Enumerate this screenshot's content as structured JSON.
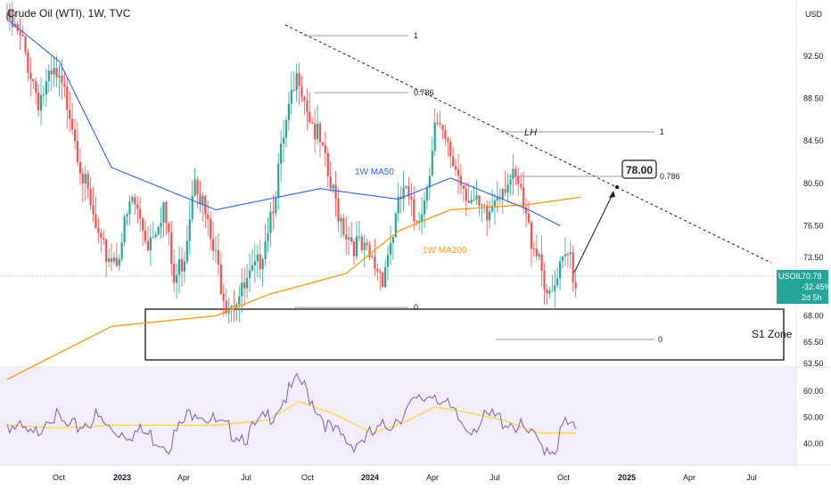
{
  "header": {
    "title": "Crude Oil (WTI), 1W, TVC",
    "currency": "USD"
  },
  "chart_data": {
    "type": "candlestick",
    "instrument": "USOIL",
    "timeframe": "1W",
    "ylim": [
      62.5,
      97.5
    ],
    "price_ticks": [
      "92.50",
      "88.50",
      "84.50",
      "80.50",
      "76.50",
      "73.50",
      "68.00",
      "65.50",
      "63.50"
    ],
    "price_tick_values": [
      92.5,
      88.5,
      84.5,
      80.5,
      76.5,
      73.5,
      68.0,
      65.5,
      63.5
    ],
    "time_labels": [
      "Oct",
      "2023",
      "Apr",
      "Jul",
      "Oct",
      "2024",
      "Apr",
      "Jul",
      "Oct",
      "2025",
      "Apr",
      "Jul"
    ],
    "last_price": {
      "symbol": "USOIL",
      "value": "70.78",
      "change": "-32.45%",
      "countdown": "2d 5h"
    },
    "ma_labels": {
      "ma50": "1W MA50",
      "ma200": "1W MA200"
    },
    "colors": {
      "up": "#26a69a",
      "down": "#ef5350",
      "ma50": "#2962ff",
      "ma200": "#ff9800",
      "rsi": "#7e57c2",
      "rsi_ma": "#fdd835"
    },
    "annotations": {
      "target": "78.00",
      "lower_high": "LH",
      "support": "S1 Zone",
      "fib_a": [
        "1",
        "0.786",
        "0"
      ],
      "fib_b": [
        "1",
        "0.786",
        "0"
      ]
    },
    "rsi": {
      "ticks": [
        "60.00",
        "50.00",
        "40.00"
      ],
      "tick_values": [
        60,
        50,
        40
      ],
      "ylim": [
        34,
        66
      ]
    },
    "anchors": [
      [
        0,
        96
      ],
      [
        6,
        93.5
      ],
      [
        12,
        88.5
      ],
      [
        18,
        90.5
      ],
      [
        24,
        87.8
      ],
      [
        30,
        80
      ],
      [
        36,
        74
      ],
      [
        42,
        73.5
      ],
      [
        48,
        79
      ],
      [
        54,
        75
      ],
      [
        60,
        78.5
      ],
      [
        64,
        71
      ],
      [
        68,
        74
      ],
      [
        72,
        82
      ],
      [
        78,
        75
      ],
      [
        84,
        69.5
      ],
      [
        90,
        70
      ],
      [
        96,
        72.5
      ],
      [
        102,
        79
      ],
      [
        108,
        87
      ],
      [
        112,
        91
      ],
      [
        116,
        87
      ],
      [
        120,
        84
      ],
      [
        124,
        80
      ],
      [
        130,
        76
      ],
      [
        136,
        74
      ],
      [
        140,
        73
      ],
      [
        144,
        72
      ],
      [
        148,
        76
      ],
      [
        152,
        80
      ],
      [
        156,
        77
      ],
      [
        160,
        79
      ],
      [
        164,
        86
      ],
      [
        168,
        84
      ],
      [
        172,
        82
      ],
      [
        176,
        80
      ],
      [
        180,
        78
      ],
      [
        184,
        77
      ],
      [
        188,
        80
      ],
      [
        192,
        81
      ],
      [
        196,
        80
      ],
      [
        200,
        76
      ],
      [
        204,
        74
      ],
      [
        208,
        69
      ],
      [
        212,
        72
      ],
      [
        216,
        74
      ],
      [
        218,
        70.8
      ]
    ],
    "ma50_anchors": [
      [
        0,
        96
      ],
      [
        20,
        92
      ],
      [
        40,
        82
      ],
      [
        60,
        80
      ],
      [
        80,
        78
      ],
      [
        100,
        79
      ],
      [
        120,
        80
      ],
      [
        150,
        79
      ],
      [
        170,
        81
      ],
      [
        190,
        79
      ],
      [
        200,
        78
      ],
      [
        212,
        76.5
      ]
    ],
    "ma200_anchors": [
      [
        0,
        62
      ],
      [
        40,
        67
      ],
      [
        80,
        68
      ],
      [
        100,
        70
      ],
      [
        130,
        72
      ],
      [
        150,
        76
      ],
      [
        170,
        78
      ],
      [
        200,
        78.5
      ],
      [
        220,
        79.2
      ]
    ],
    "rsi_anchors": [
      [
        0,
        48
      ],
      [
        10,
        42
      ],
      [
        16,
        52
      ],
      [
        24,
        45
      ],
      [
        34,
        50
      ],
      [
        40,
        45
      ],
      [
        52,
        44
      ],
      [
        62,
        40
      ],
      [
        72,
        54
      ],
      [
        82,
        46
      ],
      [
        92,
        43
      ],
      [
        102,
        52
      ],
      [
        112,
        64
      ],
      [
        118,
        55
      ],
      [
        124,
        45
      ],
      [
        132,
        40
      ],
      [
        142,
        44
      ],
      [
        152,
        52
      ],
      [
        164,
        60
      ],
      [
        170,
        52
      ],
      [
        176,
        46
      ],
      [
        186,
        50
      ],
      [
        194,
        48
      ],
      [
        204,
        40
      ],
      [
        210,
        38
      ],
      [
        214,
        48
      ],
      [
        218,
        44
      ]
    ],
    "rsi_ma_anchors": [
      [
        0,
        47
      ],
      [
        20,
        46
      ],
      [
        40,
        47
      ],
      [
        60,
        47
      ],
      [
        80,
        47
      ],
      [
        100,
        49
      ],
      [
        112,
        56
      ],
      [
        126,
        51
      ],
      [
        140,
        44
      ],
      [
        152,
        48
      ],
      [
        164,
        54
      ],
      [
        176,
        52
      ],
      [
        190,
        49
      ],
      [
        204,
        44
      ],
      [
        218,
        44
      ]
    ]
  }
}
